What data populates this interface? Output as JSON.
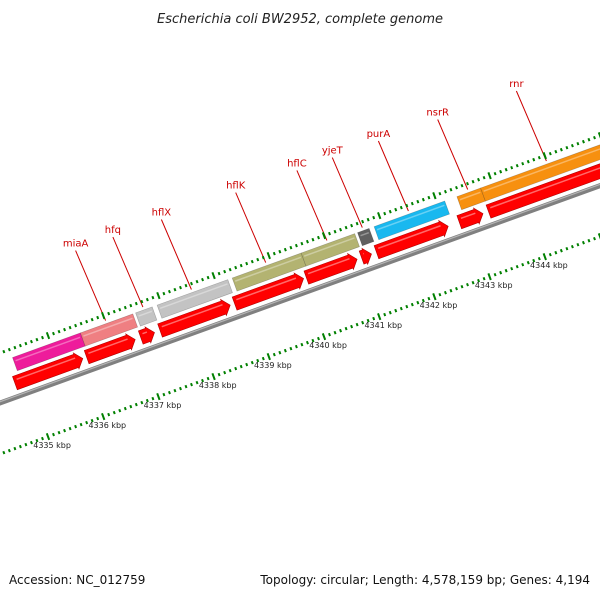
{
  "title": "Escherichia coli BW2952, complete genome",
  "footer": {
    "accession": "Accession: NC_012759",
    "topology": "Topology: circular; Length: 4,578,159 bp; Genes: 4,194"
  },
  "colors": {
    "forward_strand": "#ff0000",
    "backbone": "#808080",
    "tick": "#008000",
    "label": "#cc0000"
  },
  "genes": [
    {
      "name": "",
      "start": 4334.4,
      "end": 4335.63,
      "color": "#ee1c9b"
    },
    {
      "name": "miaA",
      "start": 4335.63,
      "end": 4336.58,
      "color": "#ef7f82"
    },
    {
      "name": "hfq",
      "start": 4336.63,
      "end": 4336.93,
      "color": "#c3c3c3"
    },
    {
      "name": "hflX",
      "start": 4337.02,
      "end": 4338.3,
      "color": "#c3c3c3"
    },
    {
      "name": "hflK",
      "start": 4338.38,
      "end": 4339.63,
      "color": "#b3b371"
    },
    {
      "name": "hflC",
      "start": 4339.63,
      "end": 4340.6,
      "color": "#b3b371"
    },
    {
      "name": "yjeT",
      "start": 4340.65,
      "end": 4340.86,
      "color": "#606060"
    },
    {
      "name": "purA",
      "start": 4340.95,
      "end": 4342.23,
      "color": "#19b8ef"
    },
    {
      "name": "nsrR",
      "start": 4342.45,
      "end": 4342.88,
      "color": "#f7900f"
    },
    {
      "name": "rnr",
      "start": 4342.88,
      "end": 4345.3,
      "color": "#f7900f"
    }
  ],
  "forward_features": [
    {
      "start": 4334.4,
      "end": 4335.63
    },
    {
      "start": 4335.7,
      "end": 4336.58
    },
    {
      "start": 4336.68,
      "end": 4336.93
    },
    {
      "start": 4337.03,
      "end": 4338.3
    },
    {
      "start": 4338.38,
      "end": 4339.63
    },
    {
      "start": 4339.68,
      "end": 4340.6
    },
    {
      "start": 4340.68,
      "end": 4340.86
    },
    {
      "start": 4340.95,
      "end": 4342.25
    },
    {
      "start": 4342.45,
      "end": 4342.88
    },
    {
      "start": 4342.98,
      "end": 4345.3
    }
  ],
  "kbp_labels": [
    {
      "kb": 4335,
      "text": "4335 kbp"
    },
    {
      "kb": 4336,
      "text": "4336 kbp"
    },
    {
      "kb": 4337,
      "text": "4337 kbp"
    },
    {
      "kb": 4338,
      "text": "4338 kbp"
    },
    {
      "kb": 4339,
      "text": "4339 kbp"
    },
    {
      "kb": 4340,
      "text": "4340 kbp"
    },
    {
      "kb": 4341,
      "text": "4341 kbp"
    },
    {
      "kb": 4342,
      "text": "4342 kbp"
    },
    {
      "kb": 4343,
      "text": "4343 kbp"
    },
    {
      "kb": 4344,
      "text": "4344 kbp"
    }
  ]
}
